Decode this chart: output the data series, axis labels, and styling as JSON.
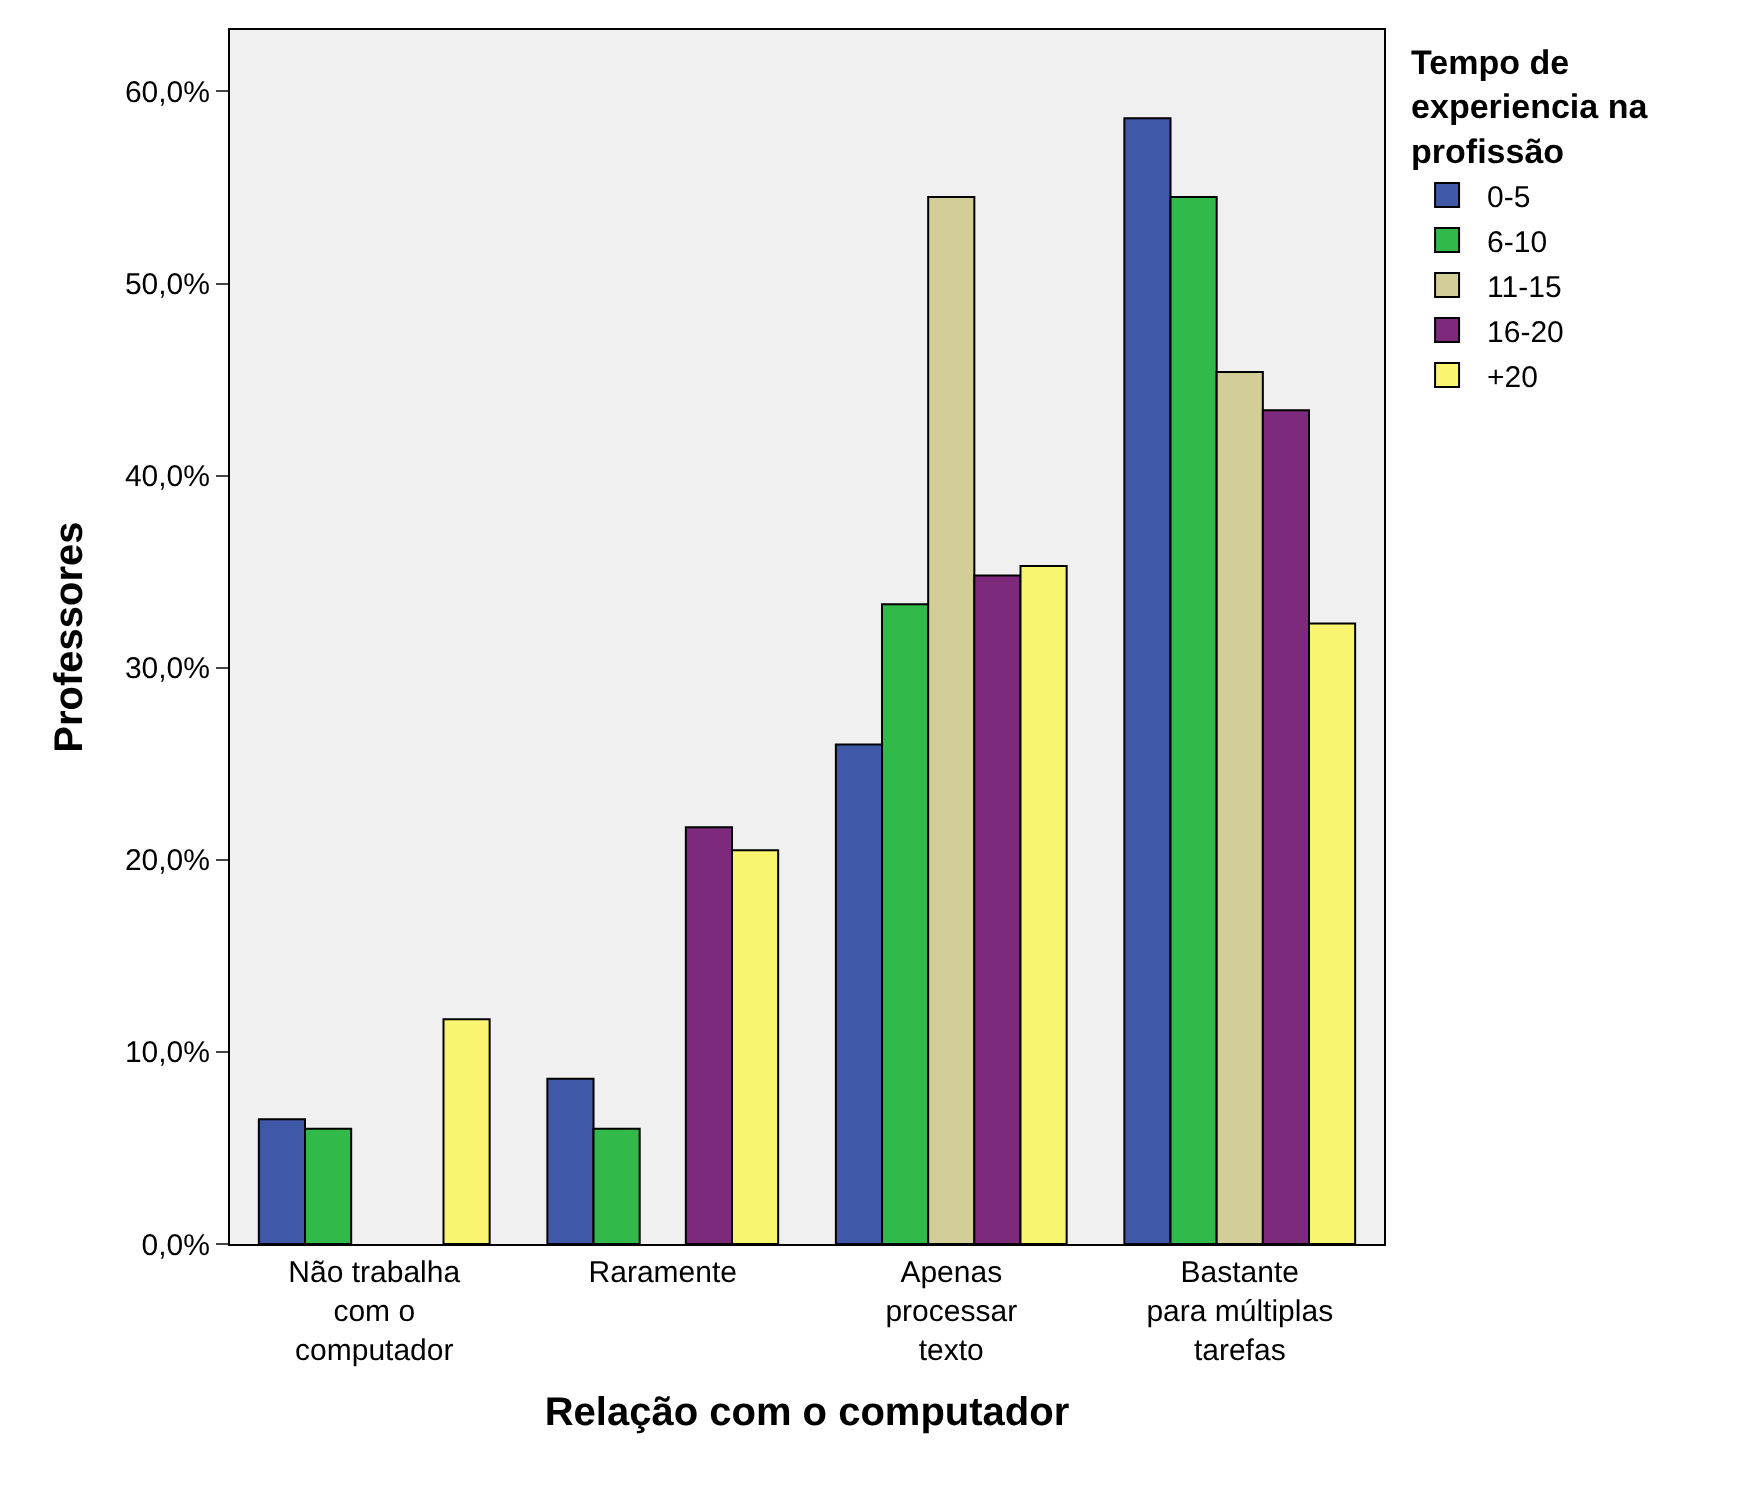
{
  "chart_data": {
    "type": "bar",
    "categories": [
      "Não trabalha\ncom o\ncomputador",
      "Raramente",
      "Apenas\nprocessar\ntexto",
      "Bastante\npara múltiplas\ntarefas"
    ],
    "xlabel": "Relação com o computador",
    "ylabel": "Professores",
    "legend_title": "Tempo de\nexperiencia na\nprofissão",
    "series": [
      {
        "name": "0-5",
        "color": "#3f59a8",
        "values": [
          6.5,
          8.6,
          26.0,
          58.6
        ]
      },
      {
        "name": "6-10",
        "color": "#31b94a",
        "values": [
          6.0,
          6.0,
          33.3,
          54.5
        ]
      },
      {
        "name": "11-15",
        "color": "#d3ce97",
        "values": [
          null,
          null,
          54.5,
          45.4
        ]
      },
      {
        "name": "16-20",
        "color": "#7d2a7d",
        "values": [
          null,
          21.7,
          34.8,
          43.4
        ]
      },
      {
        "name": "+20",
        "color": "#faf56e",
        "values": [
          11.7,
          20.5,
          35.3,
          32.3
        ]
      }
    ],
    "ylim": [
      0,
      63.2
    ],
    "yticks": [
      {
        "value": 0,
        "label": "0,0%"
      },
      {
        "value": 10,
        "label": "10,0%"
      },
      {
        "value": 20,
        "label": "20,0%"
      },
      {
        "value": 30,
        "label": "30,0%"
      },
      {
        "value": 40,
        "label": "40,0%"
      },
      {
        "value": 50,
        "label": "50,0%"
      },
      {
        "value": 60,
        "label": "60,0%"
      }
    ],
    "grid": false,
    "legend": "top right"
  }
}
